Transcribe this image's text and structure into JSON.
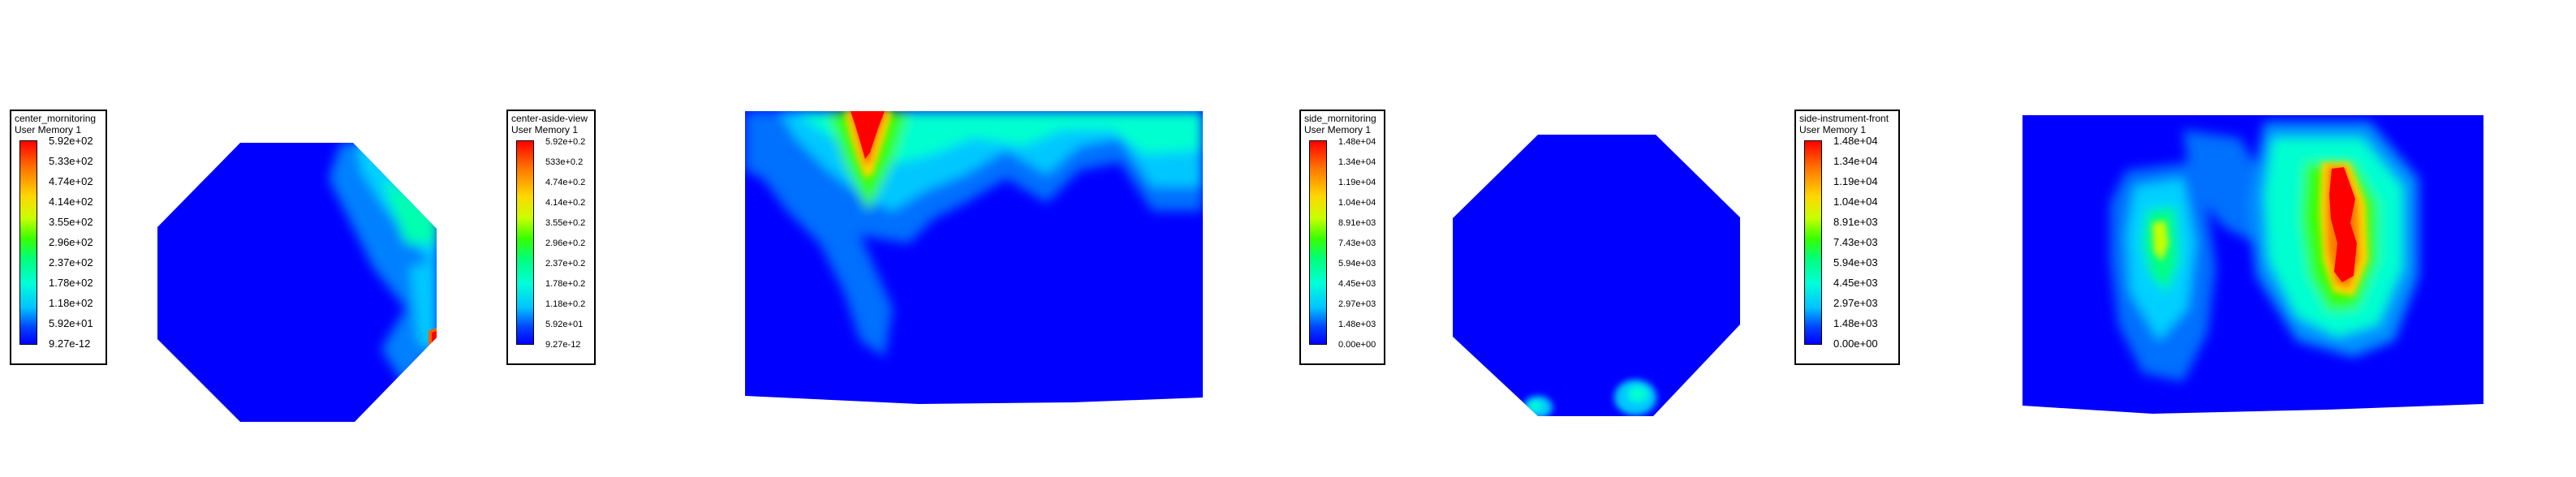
{
  "panels": [
    {
      "legend": {
        "title_line1": "center_mornitoring",
        "title_line2": "User Memory 1",
        "labels": [
          "5.92e+02",
          "5.33e+02",
          "4.74e+02",
          "4.14e+02",
          "3.55e+02",
          "2.96e+02",
          "2.37e+02",
          "1.78e+02",
          "1.18e+02",
          "5.92e+01",
          "9.27e-12"
        ]
      }
    },
    {
      "legend": {
        "title_line1": "center-aside-view",
        "title_line2": "User Memory 1",
        "labels": [
          "5.92e+0.2",
          "533e+0.2",
          "4.74e+0.2",
          "4.14e+0.2",
          "3.55e+0.2",
          "2.96e+0.2",
          "2.37e+0.2",
          "1.78e+0.2",
          "1.18e+0.2",
          "5.92e+01",
          "9.27e-12"
        ]
      }
    },
    {
      "legend": {
        "title_line1": "side_mornitoring",
        "title_line2": "User Memory 1",
        "labels": [
          "1.48e+04",
          "1.34e+04",
          "1.19e+04",
          "1.04e+04",
          "8.91e+03",
          "7.43e+03",
          "5.94e+03",
          "4.45e+03",
          "2.97e+03",
          "1.48e+03",
          "0.00e+00"
        ]
      }
    },
    {
      "legend": {
        "title_line1": "side-instrument-front",
        "title_line2": "User Memory 1",
        "labels": [
          "1.48e+04",
          "1.34e+04",
          "1.19e+04",
          "1.04e+04",
          "8.91e+03",
          "7.43e+03",
          "5.94e+03",
          "4.45e+03",
          "2.97e+03",
          "1.48e+03",
          "0.00e+00"
        ]
      }
    }
  ],
  "colors": {
    "low": "#0000ff",
    "cyan": "#00ffd8",
    "green": "#38ff00",
    "yellow": "#ffd600",
    "high": "#ff0000"
  }
}
